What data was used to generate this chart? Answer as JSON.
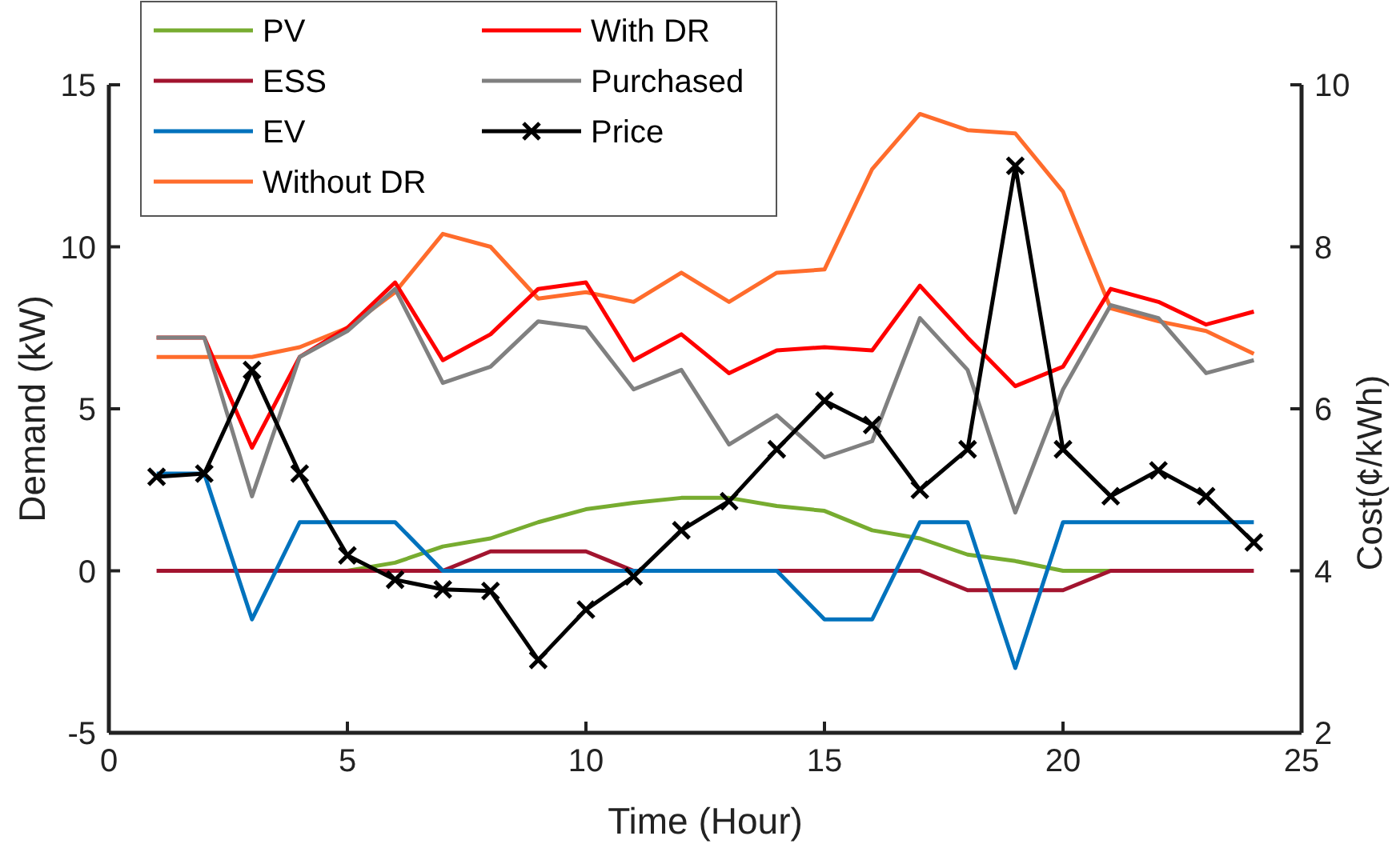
{
  "chart_data": {
    "type": "line",
    "xlabel": "Time (Hour)",
    "ylabel": "Demand (kW)",
    "y2label": "Cost(¢/kWh)",
    "x": [
      1,
      2,
      3,
      4,
      5,
      6,
      7,
      8,
      9,
      10,
      11,
      12,
      13,
      14,
      15,
      16,
      17,
      18,
      19,
      20,
      21,
      22,
      23,
      24
    ],
    "xlim": [
      0,
      25
    ],
    "xticks": [
      0,
      5,
      10,
      15,
      20,
      25
    ],
    "ylim": [
      -5,
      15
    ],
    "yticks": [
      -5,
      0,
      5,
      10,
      15
    ],
    "y2lim": [
      2,
      10
    ],
    "y2ticks": [
      2,
      4,
      6,
      8,
      10
    ],
    "grid": false,
    "legend": "top left",
    "series": [
      {
        "name": "PV",
        "color": "#77ac30",
        "marker": "none",
        "values": [
          null,
          null,
          null,
          0,
          0,
          0.25,
          0.75,
          1.0,
          1.5,
          1.9,
          2.1,
          2.25,
          2.25,
          2.0,
          1.85,
          1.25,
          1.0,
          0.5,
          0.3,
          0,
          0,
          0,
          null,
          null
        ]
      },
      {
        "name": "ESS",
        "color": "#a2142f",
        "marker": "none",
        "values": [
          0,
          0,
          0,
          0,
          0,
          0,
          0,
          0.6,
          0.6,
          0.6,
          0,
          0,
          0,
          0,
          0,
          0,
          0,
          -0.6,
          -0.6,
          -0.6,
          0,
          0,
          0,
          0
        ]
      },
      {
        "name": "EV",
        "color": "#0072bd",
        "marker": "none",
        "values": [
          3.0,
          3.0,
          -1.5,
          1.5,
          1.5,
          1.5,
          0,
          0,
          0,
          0,
          0,
          0,
          0,
          0,
          -1.5,
          -1.5,
          1.5,
          1.5,
          -3.0,
          1.5,
          1.5,
          1.5,
          1.5,
          1.5
        ]
      },
      {
        "name": "Without DR",
        "color": "#ff6c2c",
        "marker": "none",
        "values": [
          6.6,
          6.6,
          6.6,
          6.9,
          7.5,
          8.6,
          10.4,
          10.0,
          8.4,
          8.6,
          8.3,
          9.2,
          8.3,
          9.2,
          9.3,
          12.4,
          14.1,
          13.6,
          13.5,
          11.7,
          8.1,
          7.7,
          7.4,
          6.7
        ]
      },
      {
        "name": "With DR",
        "color": "#ff0000",
        "marker": "none",
        "values": [
          7.2,
          7.2,
          3.8,
          6.6,
          7.5,
          8.9,
          6.5,
          7.3,
          8.7,
          8.9,
          6.5,
          7.3,
          6.1,
          6.8,
          6.9,
          6.8,
          8.8,
          7.2,
          5.7,
          6.3,
          8.7,
          8.3,
          7.6,
          8.0
        ]
      },
      {
        "name": "Purchased",
        "color": "#808080",
        "marker": "none",
        "values": [
          7.2,
          7.2,
          2.3,
          6.6,
          7.4,
          8.7,
          5.8,
          6.3,
          7.7,
          7.5,
          5.6,
          6.2,
          3.9,
          4.8,
          3.5,
          4.0,
          7.8,
          6.2,
          1.8,
          5.6,
          8.2,
          7.8,
          6.1,
          6.5
        ]
      },
      {
        "name": "Price",
        "color": "#000000",
        "marker": "cross",
        "axis": "y2",
        "values": [
          5.16,
          5.2,
          6.48,
          5.2,
          4.19,
          3.89,
          3.77,
          3.75,
          2.9,
          3.52,
          3.93,
          4.5,
          4.86,
          5.5,
          6.1,
          5.8,
          5.0,
          5.5,
          9.0,
          5.5,
          4.92,
          5.24,
          4.92,
          4.35
        ]
      }
    ]
  }
}
